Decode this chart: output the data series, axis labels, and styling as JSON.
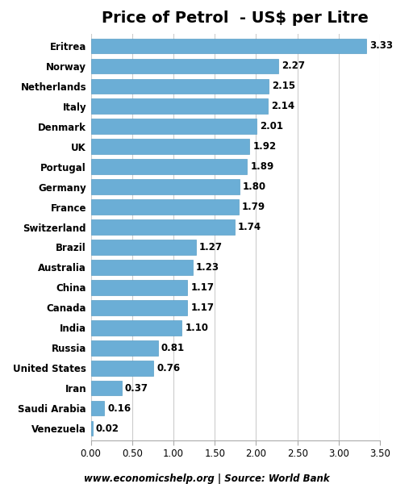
{
  "title": "Price of Petrol  - US$ per Litre",
  "countries": [
    "Venezuela",
    "Saudi Arabia",
    "Iran",
    "United States",
    "Russia",
    "India",
    "Canada",
    "China",
    "Australia",
    "Brazil",
    "Switzerland",
    "France",
    "Germany",
    "Portugal",
    "UK",
    "Denmark",
    "Italy",
    "Netherlands",
    "Norway",
    "Eritrea"
  ],
  "values": [
    0.02,
    0.16,
    0.37,
    0.76,
    0.81,
    1.1,
    1.17,
    1.17,
    1.23,
    1.27,
    1.74,
    1.79,
    1.8,
    1.89,
    1.92,
    2.01,
    2.14,
    2.15,
    2.27,
    3.33
  ],
  "bar_color": "#6baed6",
  "bar_edge_color": "#5a9ec6",
  "xlim": [
    0,
    3.5
  ],
  "xticks": [
    0.0,
    0.5,
    1.0,
    1.5,
    2.0,
    2.5,
    3.0,
    3.5
  ],
  "xtick_labels": [
    "0.00",
    "0.50",
    "1.00",
    "1.50",
    "2.00",
    "2.50",
    "3.00",
    "3.50"
  ],
  "footer": "www.economicshelp.org | Source: World Bank",
  "value_fontsize": 8.5,
  "country_fontsize": 8.5,
  "title_fontsize": 14,
  "tick_fontsize": 8.5,
  "footer_fontsize": 8.5,
  "background_color": "#ffffff",
  "grid_color": "#cccccc",
  "bar_height": 0.75
}
